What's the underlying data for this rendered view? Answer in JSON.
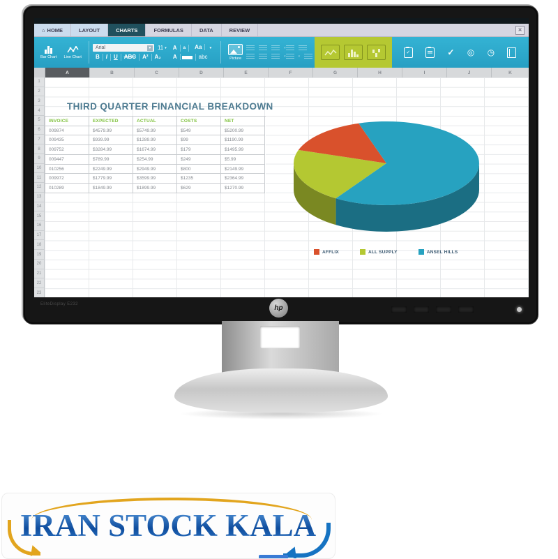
{
  "icons": {
    "close": "✕",
    "home": "⌂",
    "dropdown": "▾",
    "check": "✓",
    "target": "◎",
    "clock": "◷"
  },
  "tabs": [
    {
      "label": "HOME",
      "active": false
    },
    {
      "label": "LAYOUT",
      "active": false
    },
    {
      "label": "CHARTS",
      "active": true
    },
    {
      "label": "FORMULAS",
      "active": false
    },
    {
      "label": "DATA",
      "active": false
    },
    {
      "label": "REVIEW",
      "active": false
    }
  ],
  "toolbar": {
    "bar_chart_label": "Bar Chart",
    "line_chart_label": "Line Chart",
    "font_name": "Arial",
    "font_size": "11",
    "format_buttons": [
      "B",
      "I",
      "U",
      "ABC",
      "A²",
      "A₂"
    ],
    "case_buttons": [
      "A",
      "a",
      "Aa"
    ],
    "fill_buttons": [
      "A",
      "abc"
    ],
    "picture_label": "Picture"
  },
  "sheet": {
    "columns": [
      "A",
      "B",
      "C",
      "D",
      "E",
      "F",
      "G",
      "H",
      "I",
      "J",
      "K"
    ],
    "selected_column": "A",
    "row_numbers": [
      "1",
      "2",
      "3",
      "4",
      "5",
      "6",
      "7",
      "8",
      "9",
      "10",
      "11",
      "12",
      "13",
      "14",
      "15",
      "16",
      "17",
      "18",
      "19",
      "20",
      "21",
      "22",
      "23"
    ],
    "title": "THIRD QUARTER FINANCIAL BREAKDOWN",
    "table": {
      "headers": [
        "INVOICE",
        "EXPECTED",
        "ACTUAL",
        "COSTS",
        "NET"
      ],
      "rows": [
        [
          "009874",
          "$4579.99",
          "$5749.99",
          "$549",
          "$5200.99"
        ],
        [
          "009435",
          "$939.99",
          "$1289.99",
          "$99",
          "$1190.99"
        ],
        [
          "009752",
          "$3284.99",
          "$1674.99",
          "$179",
          "$1495.99"
        ],
        [
          "009447",
          "$789.99",
          "$254.99",
          "$249",
          "$5.99"
        ],
        [
          "010256",
          "$2249.99",
          "$2949.99",
          "$800",
          "$2149.99"
        ],
        [
          "009972",
          "$1779.99",
          "$3599.99",
          "$1235",
          "$2364.99"
        ],
        [
          "010289",
          "$1849.99",
          "$1899.99",
          "$629",
          "$1270.99"
        ]
      ]
    }
  },
  "chart_data": {
    "type": "pie",
    "style": "3d",
    "legend_position": "bottom",
    "values_unit": "percent",
    "series": [
      {
        "name": "AFFLIX",
        "value": 15,
        "color": "#d9512c"
      },
      {
        "name": "ALL SUPPLY",
        "value": 21,
        "color": "#b4c832"
      },
      {
        "name": "ANSEL HILLS",
        "value": 64,
        "color": "#27a2c0"
      }
    ],
    "draw_order": [
      "ALL SUPPLY",
      "AFFLIX",
      "ANSEL HILLS"
    ],
    "start_angle_deg": 123
  },
  "monitor": {
    "brand": "hp",
    "model_label": "EliteDisplay E232"
  },
  "watermark": {
    "text": "IRAN STOCK KALA"
  },
  "colors": {
    "toolbar_cyan": "#2ba9cc",
    "ribbon_green": "#b5c832",
    "active_tab": "#20505d",
    "table_header_green": "#7fc13d",
    "sheet_title_blue": "#4e7b91"
  }
}
